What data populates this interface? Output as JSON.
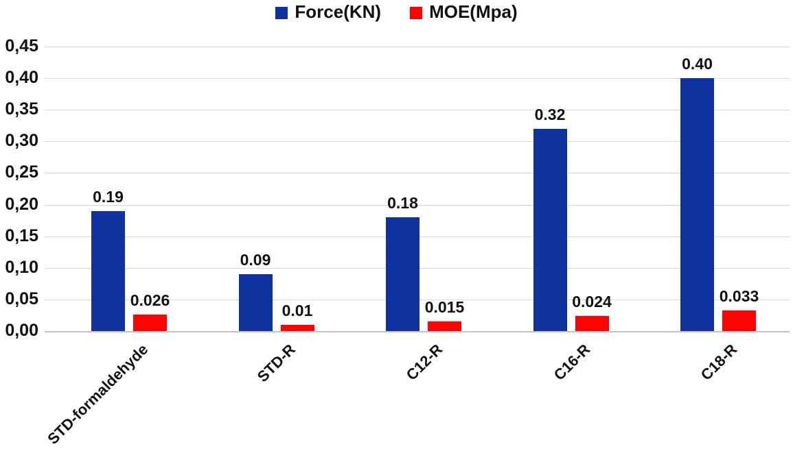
{
  "legend": {
    "items": [
      {
        "label": "Force(KN)",
        "color": "#10329e"
      },
      {
        "label": "MOE(Mpa)",
        "color": "#fd0404"
      }
    ]
  },
  "chart_data": {
    "type": "bar",
    "title": "",
    "xlabel": "",
    "ylabel": "",
    "categories": [
      "STD-formaldehyde",
      "STD-R",
      "C12-R",
      "C16-R",
      "C18-R"
    ],
    "series": [
      {
        "key": "force",
        "name": "Force(KN)",
        "color": "#10329e",
        "values": [
          0.19,
          0.09,
          0.18,
          0.32,
          0.4
        ],
        "labels": [
          "0.19",
          "0.09",
          "0.18",
          "0.32",
          "0.40"
        ]
      },
      {
        "key": "moe",
        "name": "MOE(Mpa)",
        "color": "#fd0404",
        "values": [
          0.026,
          0.01,
          0.015,
          0.024,
          0.033
        ],
        "labels": [
          "0.026",
          "0.01",
          "0.015",
          "0.024",
          "0.033"
        ]
      }
    ],
    "y_axis": {
      "min": 0,
      "max": 0.45,
      "step": 0.05,
      "tick_labels": [
        "0,00",
        "0,05",
        "0,10",
        "0,15",
        "0,20",
        "0,25",
        "0,30",
        "0,35",
        "0,40",
        "0,45"
      ]
    },
    "grid": true,
    "legend_position": "top"
  }
}
